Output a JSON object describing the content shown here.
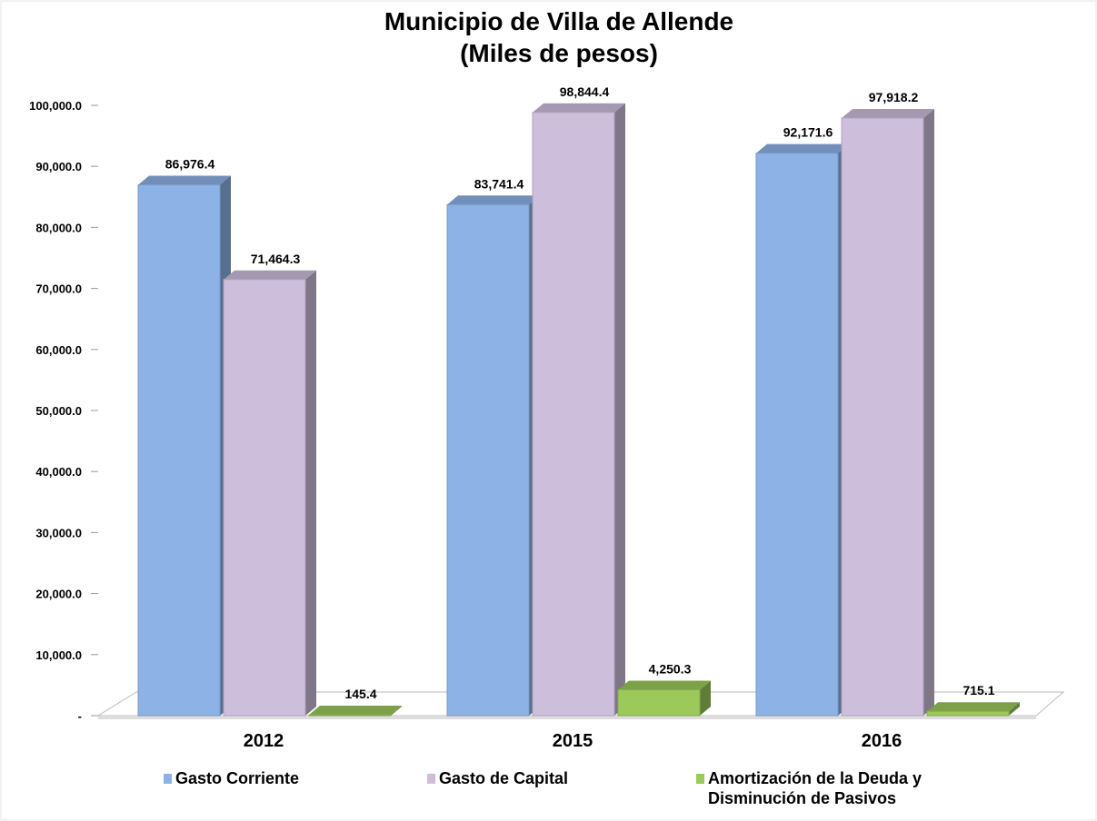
{
  "chart_data": {
    "type": "bar3d",
    "title": [
      "Municipio de  Villa de Allende",
      "(Miles de pesos)"
    ],
    "categories": [
      "2012",
      "2015",
      "2016"
    ],
    "series": [
      {
        "name": "Gasto Corriente",
        "color": "#8db3e6",
        "values": [
          86976.4,
          83741.4,
          92171.6
        ],
        "value_labels": [
          "86,976.4",
          "83,741.4",
          "92,171.6"
        ]
      },
      {
        "name": "Gasto de Capital",
        "color": "#cdbfdc",
        "values": [
          71464.3,
          98844.4,
          97918.2
        ],
        "value_labels": [
          "71,464.3",
          "98,844.4",
          "97,918.2"
        ]
      },
      {
        "name": "Amortización de la Deuda y Disminución de Pasivos",
        "color": "#9bc95a",
        "values": [
          145.4,
          4250.3,
          715.1
        ],
        "value_labels": [
          "145.4",
          "4,250.3",
          "715.1"
        ]
      }
    ],
    "ylim": [
      0,
      100000
    ],
    "yticks": [
      {
        "value": 0,
        "label": "-"
      },
      {
        "value": 10000,
        "label": "10,000.0"
      },
      {
        "value": 20000,
        "label": "20,000.0"
      },
      {
        "value": 30000,
        "label": "30,000.0"
      },
      {
        "value": 40000,
        "label": "40,000.0"
      },
      {
        "value": 50000,
        "label": "50,000.0"
      },
      {
        "value": 60000,
        "label": "60,000.0"
      },
      {
        "value": 70000,
        "label": "70,000.0"
      },
      {
        "value": 80000,
        "label": "80,000.0"
      },
      {
        "value": 90000,
        "label": "90,000.0"
      },
      {
        "value": 100000,
        "label": "100,000.0"
      }
    ],
    "legend": "bottom"
  }
}
